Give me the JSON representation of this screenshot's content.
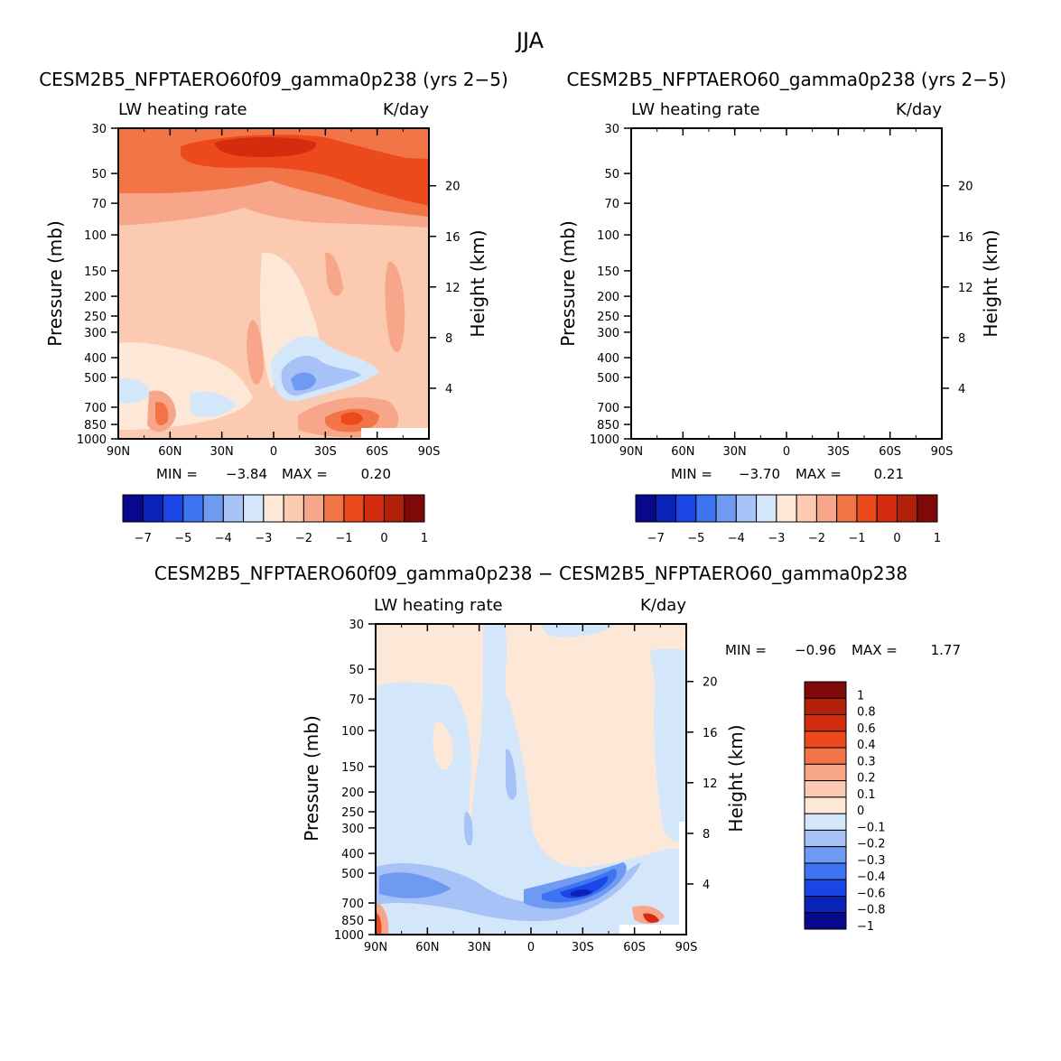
{
  "figure_title": "JJA",
  "chart_data": [
    {
      "type": "heatmap",
      "title": "CESM2B5_NFPTAERO60f09_gamma0p238 (yrs 2−5)",
      "left_label": "LW heating rate",
      "right_label": "K/day",
      "ylabel": "Pressure (mb)",
      "ylabel_right": "Height (km)",
      "x_ticks": [
        "90N",
        "60N",
        "30N",
        "0",
        "30S",
        "60S",
        "90S"
      ],
      "pressure_ticks": [
        "30",
        "50",
        "70",
        "100",
        "150",
        "200",
        "250",
        "300",
        "400",
        "500",
        "700",
        "850",
        "1000"
      ],
      "height_ticks": [
        "20",
        "16",
        "12",
        "8",
        "4"
      ],
      "min_label": "MIN =",
      "min_value": "−3.84",
      "max_label": "MAX =",
      "max_value": "0.20",
      "colorbar_labels": [
        "−7",
        "−5",
        "−4",
        "−3",
        "−2",
        "−1",
        "0",
        "1"
      ],
      "colorbar_colors": [
        "#08088c",
        "#0a22b8",
        "#1a46e6",
        "#3c74f2",
        "#6e9af2",
        "#a6c2f6",
        "#d4e6fa",
        "#fde8d8",
        "#fbcab0",
        "#f8a68a",
        "#f17546",
        "#ec4a1c",
        "#d42c0e",
        "#b0200a",
        "#800a0a"
      ]
    },
    {
      "type": "heatmap",
      "title": "CESM2B5_NFPTAERO60_gamma0p238 (yrs 2−5)",
      "left_label": "LW heating rate",
      "right_label": "K/day",
      "ylabel": "Pressure (mb)",
      "ylabel_right": "Height (km)",
      "x_ticks": [
        "90N",
        "60N",
        "30N",
        "0",
        "30S",
        "60S",
        "90S"
      ],
      "pressure_ticks": [
        "30",
        "50",
        "70",
        "100",
        "150",
        "200",
        "250",
        "300",
        "400",
        "500",
        "700",
        "850",
        "1000"
      ],
      "height_ticks": [
        "20",
        "16",
        "12",
        "8",
        "4"
      ],
      "min_label": "MIN =",
      "min_value": "−3.70",
      "max_label": "MAX =",
      "max_value": "0.21",
      "colorbar_labels": [
        "−7",
        "−5",
        "−4",
        "−3",
        "−2",
        "−1",
        "0",
        "1"
      ],
      "colorbar_colors": [
        "#08088c",
        "#0a22b8",
        "#1a46e6",
        "#3c74f2",
        "#6e9af2",
        "#a6c2f6",
        "#d4e6fa",
        "#fde8d8",
        "#fbcab0",
        "#f8a68a",
        "#f17546",
        "#ec4a1c",
        "#d42c0e",
        "#b0200a",
        "#800a0a"
      ]
    },
    {
      "type": "heatmap",
      "title": "CESM2B5_NFPTAERO60f09_gamma0p238 − CESM2B5_NFPTAERO60_gamma0p238",
      "left_label": "LW heating rate",
      "right_label": "K/day",
      "ylabel": "Pressure (mb)",
      "ylabel_right": "Height (km)",
      "x_ticks": [
        "90N",
        "60N",
        "30N",
        "0",
        "30S",
        "60S",
        "90S"
      ],
      "pressure_ticks": [
        "30",
        "50",
        "70",
        "100",
        "150",
        "200",
        "250",
        "300",
        "400",
        "500",
        "700",
        "850",
        "1000"
      ],
      "height_ticks": [
        "20",
        "16",
        "12",
        "8",
        "4"
      ],
      "min_label": "MIN =",
      "min_value": "−0.96",
      "max_label": "MAX =",
      "max_value": "1.77",
      "colorbar_labels": [
        "1",
        "0.8",
        "0.6",
        "0.4",
        "0.3",
        "0.2",
        "0.1",
        "0",
        "−0.1",
        "−0.2",
        "−0.3",
        "−0.4",
        "−0.6",
        "−0.8",
        "−1"
      ],
      "colorbar_colors": [
        "#800a0a",
        "#b0200a",
        "#d42c0e",
        "#ec4a1c",
        "#f17546",
        "#f8a68a",
        "#fbcab0",
        "#fde8d8",
        "#d4e6fa",
        "#a6c2f6",
        "#6e9af2",
        "#3c74f2",
        "#1a46e6",
        "#0a22b8",
        "#08088c"
      ]
    }
  ]
}
